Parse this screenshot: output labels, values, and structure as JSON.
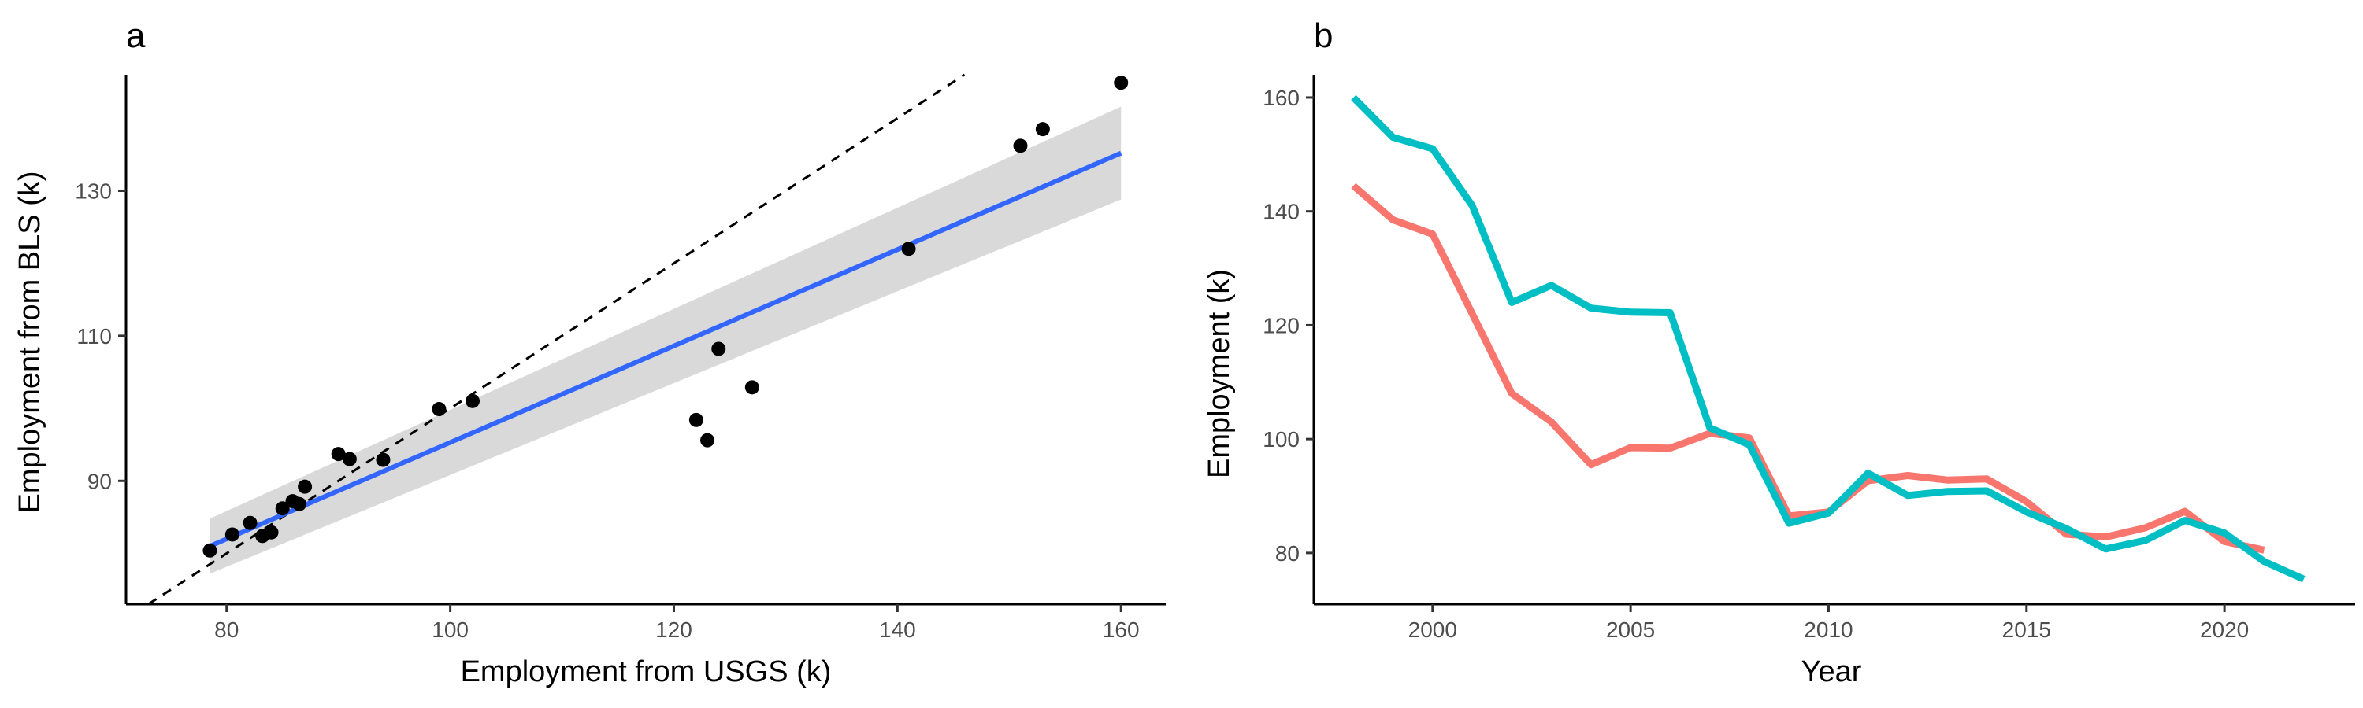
{
  "chart_data": [
    {
      "type": "scatter",
      "panel_label": "a",
      "xlabel": "Employment from USGS (k)",
      "ylabel": "Employment from BLS (k)",
      "xlim": [
        71,
        164
      ],
      "ylim": [
        73,
        146
      ],
      "x_ticks": [
        80,
        100,
        120,
        140,
        160
      ],
      "y_ticks": [
        90,
        110,
        130
      ],
      "points": [
        {
          "x": 78.5,
          "y": 80.4
        },
        {
          "x": 80.5,
          "y": 82.6
        },
        {
          "x": 82.1,
          "y": 84.2
        },
        {
          "x": 83.2,
          "y": 82.4
        },
        {
          "x": 84,
          "y": 82.9
        },
        {
          "x": 85,
          "y": 86.2
        },
        {
          "x": 85.9,
          "y": 87.2
        },
        {
          "x": 86.5,
          "y": 86.8
        },
        {
          "x": 87,
          "y": 89.2
        },
        {
          "x": 90,
          "y": 93.7
        },
        {
          "x": 91,
          "y": 93
        },
        {
          "x": 94,
          "y": 92.9
        },
        {
          "x": 99,
          "y": 99.9
        },
        {
          "x": 102,
          "y": 101
        },
        {
          "x": 122,
          "y": 98.4
        },
        {
          "x": 123,
          "y": 95.6
        },
        {
          "x": 124,
          "y": 108.2
        },
        {
          "x": 127,
          "y": 102.9
        },
        {
          "x": 141,
          "y": 122
        },
        {
          "x": 151,
          "y": 136.2
        },
        {
          "x": 153,
          "y": 138.5
        },
        {
          "x": 160,
          "y": 144.9
        }
      ],
      "fit_line": {
        "x": [
          78.5,
          160
        ],
        "y": [
          81,
          135.2
        ],
        "color": "#3366FF"
      },
      "confidence_band": {
        "x": [
          78.5,
          160
        ],
        "lower": [
          77.2,
          128.8
        ],
        "upper": [
          84.8,
          141.6
        ],
        "color": "#d9d9d9"
      },
      "reference_line": {
        "slope": 1,
        "intercept": 0,
        "style": "dashed",
        "color": "#000000"
      },
      "grid": false
    },
    {
      "type": "line",
      "panel_label": "b",
      "xlabel": "Year",
      "ylabel": "Employment (k)",
      "xlim": [
        1997,
        2023.3
      ],
      "ylim": [
        71,
        164
      ],
      "x_ticks": [
        2000,
        2005,
        2010,
        2015,
        2020
      ],
      "y_ticks": [
        80,
        100,
        120,
        140,
        160
      ],
      "series": [
        {
          "color": "#F8766D",
          "x": [
            1998,
            1999,
            2000,
            2001,
            2002,
            2003,
            2004,
            2005,
            2006,
            2007,
            2008,
            2009,
            2010,
            2011,
            2012,
            2013,
            2014,
            2015,
            2016,
            2017,
            2018,
            2019,
            2020,
            2021
          ],
          "y": [
            144.5,
            138.5,
            136,
            122,
            108,
            103,
            95.5,
            98.5,
            98.4,
            101,
            100.2,
            86.5,
            87.2,
            92.7,
            93.6,
            92.8,
            93,
            89,
            83.3,
            82.8,
            84.4,
            87.3,
            82,
            80.5
          ]
        },
        {
          "color": "#00BFC4",
          "x": [
            1998,
            1999,
            2000,
            2001,
            2002,
            2003,
            2004,
            2005,
            2006,
            2007,
            2008,
            2009,
            2010,
            2011,
            2012,
            2013,
            2014,
            2015,
            2016,
            2017,
            2018,
            2019,
            2020,
            2021,
            2022
          ],
          "y": [
            160,
            153,
            151,
            141,
            124,
            127,
            123,
            122.3,
            122.2,
            102,
            99,
            85.2,
            87,
            94,
            90.1,
            90.8,
            90.9,
            87.2,
            84.3,
            80.7,
            82.2,
            85.7,
            83.5,
            78.5,
            75.4
          ]
        }
      ],
      "grid": false
    }
  ]
}
